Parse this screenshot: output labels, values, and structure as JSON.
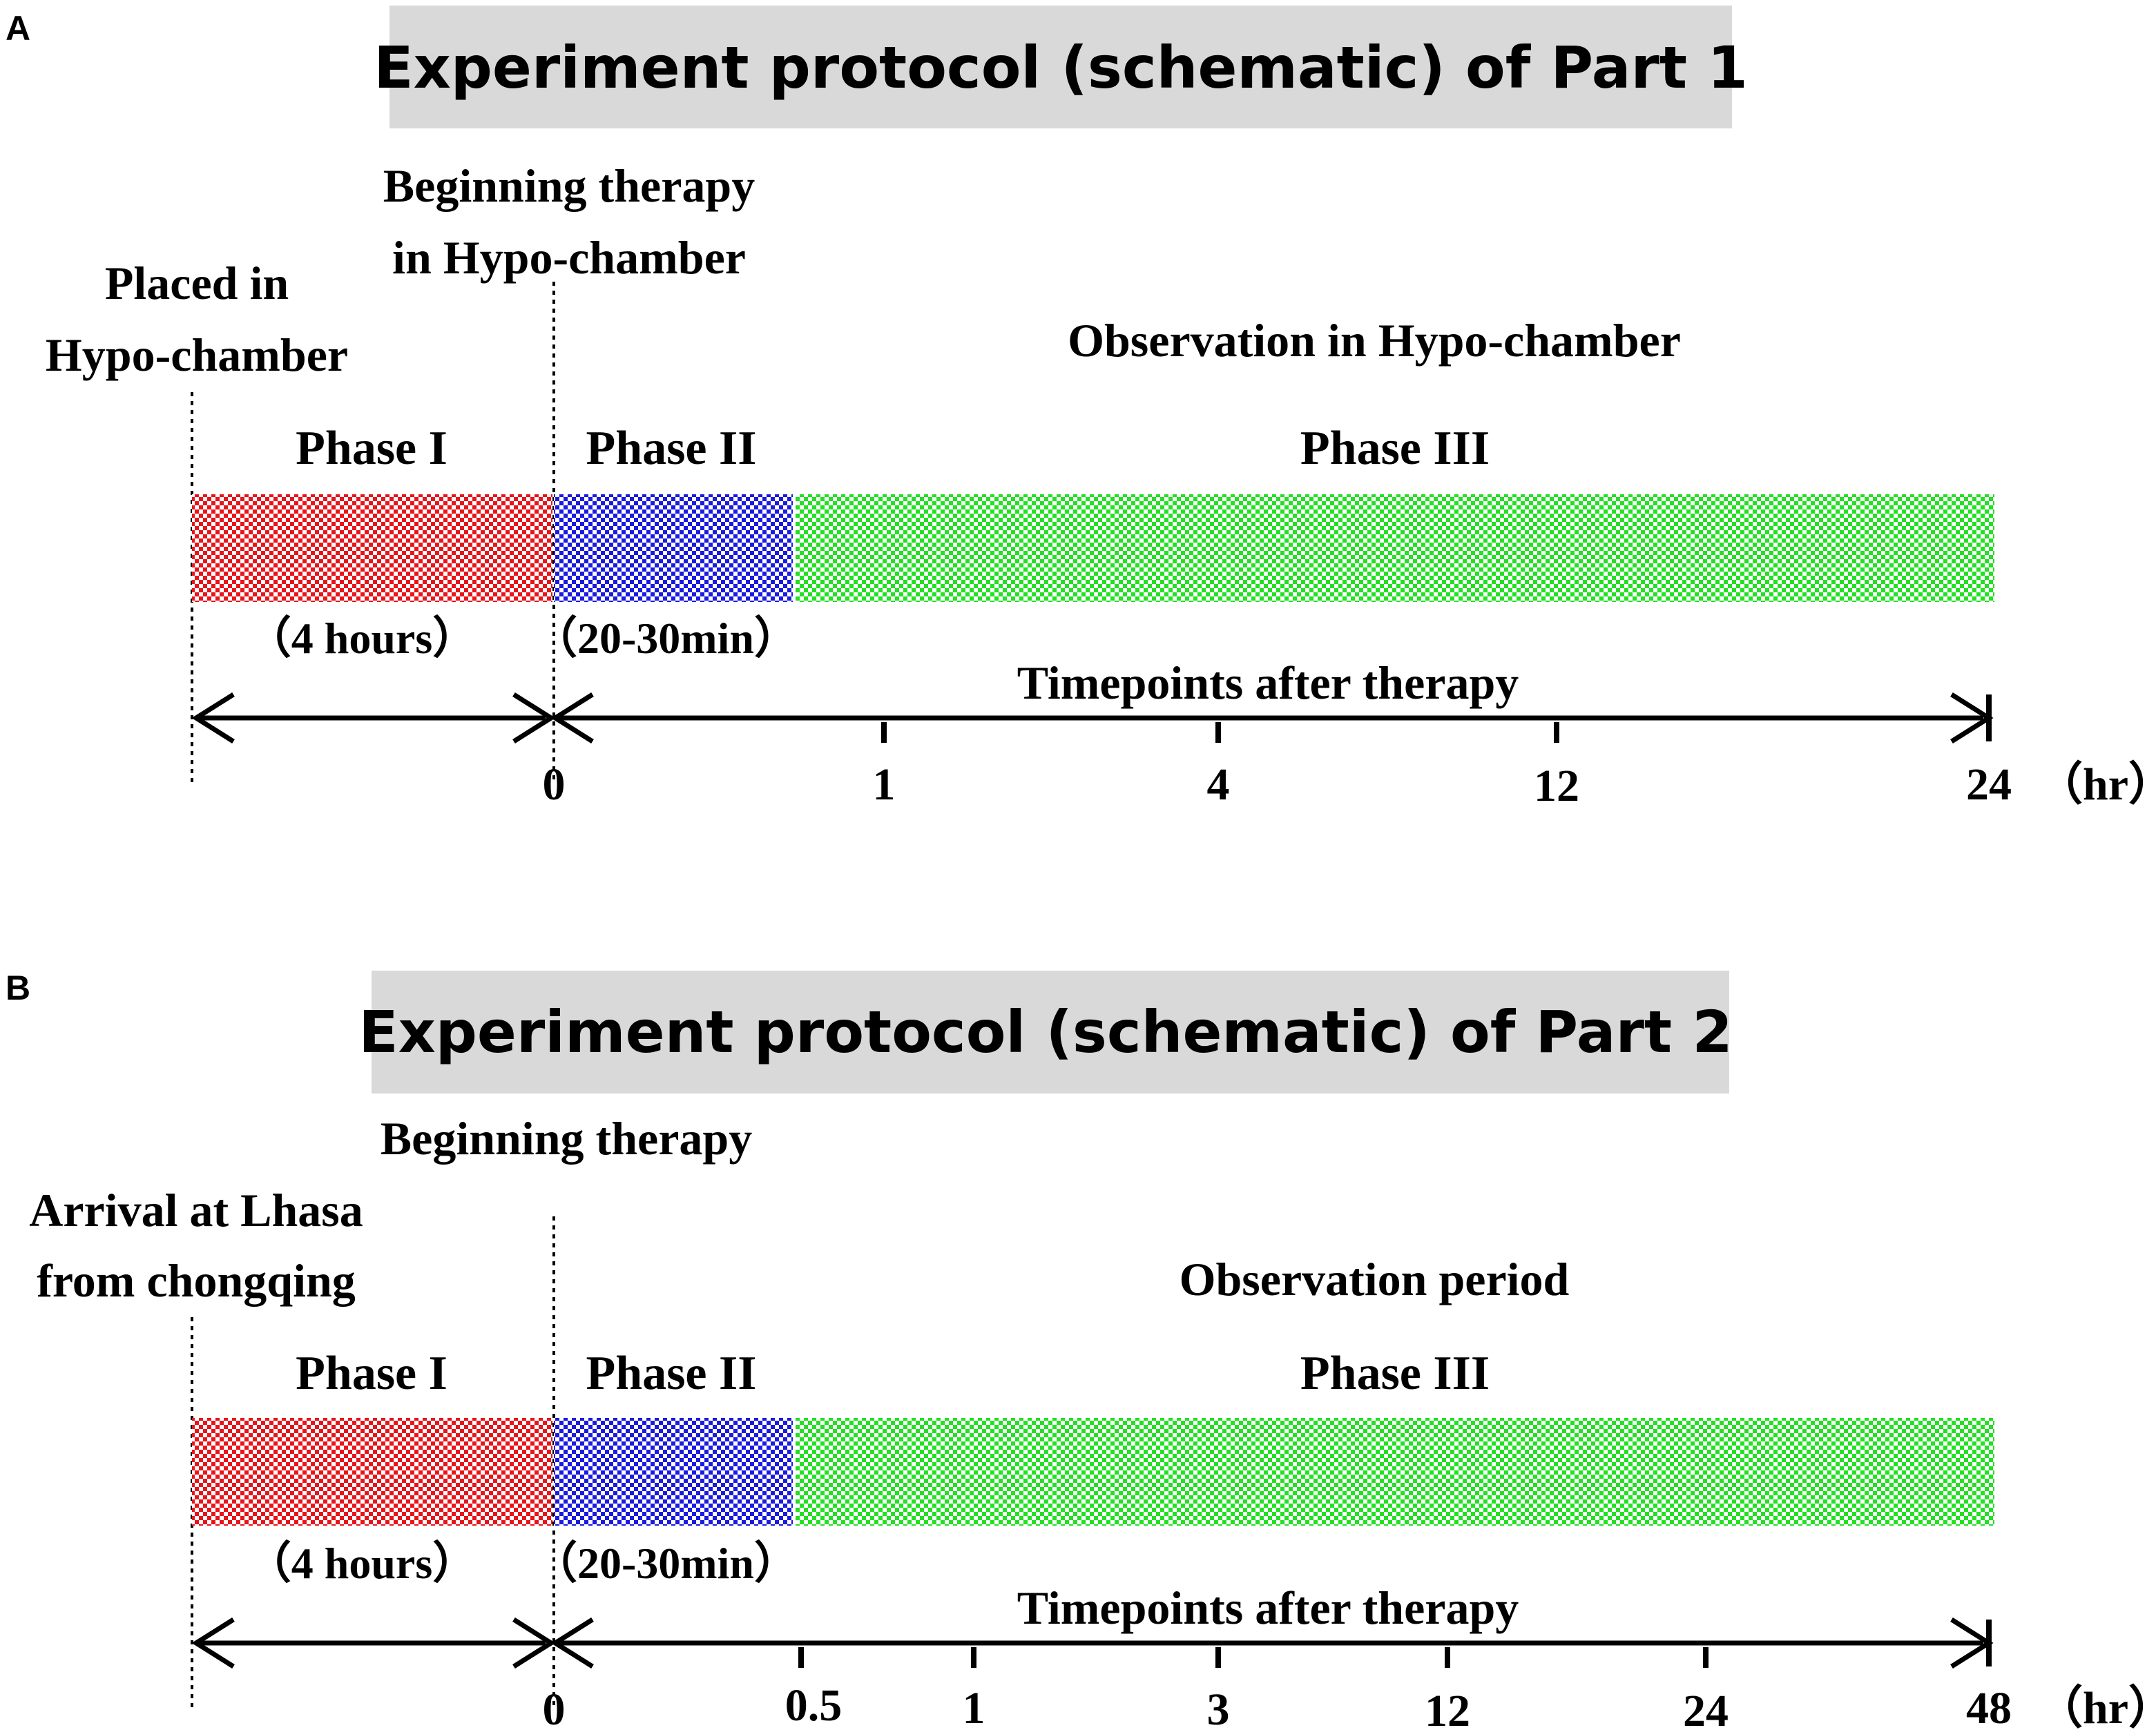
{
  "panels": [
    {
      "letter": "A",
      "title": "Experiment protocol (schematic) of Part  1",
      "start_label": [
        "Placed in",
        "Hypo-chamber"
      ],
      "therapy_label": [
        "Beginning therapy",
        "in Hypo-chamber"
      ],
      "observation_label": "Observation in Hypo-chamber",
      "phases": [
        {
          "label": "Phase  I",
          "duration": "（4 hours）",
          "color": "#e8141a"
        },
        {
          "label": "Phase  II",
          "duration": "（20-30min）",
          "color": "#1a1ae0"
        },
        {
          "label": "Phase  III",
          "duration": "",
          "color": "#22e022"
        }
      ],
      "timepoints_label": "Timepoints after therapy",
      "timepoints": [
        "0",
        "1",
        "4",
        "12",
        "24"
      ],
      "unit": "（hr）"
    },
    {
      "letter": "B",
      "title": "Experiment protocol (schematic) of  Part  2",
      "start_label": [
        "Arrival at Lhasa",
        "from chongqing"
      ],
      "therapy_label": [
        "Beginning therapy"
      ],
      "observation_label": "Observation period",
      "phases": [
        {
          "label": "Phase  I",
          "duration": "（4 hours）",
          "color": "#e8141a"
        },
        {
          "label": "Phase  II",
          "duration": "（20-30min）",
          "color": "#1a1ae0"
        },
        {
          "label": "Phase  III",
          "duration": "",
          "color": "#22e022"
        }
      ],
      "timepoints_label": "Timepoints after therapy",
      "timepoints": [
        "0",
        "0.5",
        "1",
        "3",
        "12",
        "24",
        "48"
      ],
      "unit": "（hr）"
    }
  ]
}
